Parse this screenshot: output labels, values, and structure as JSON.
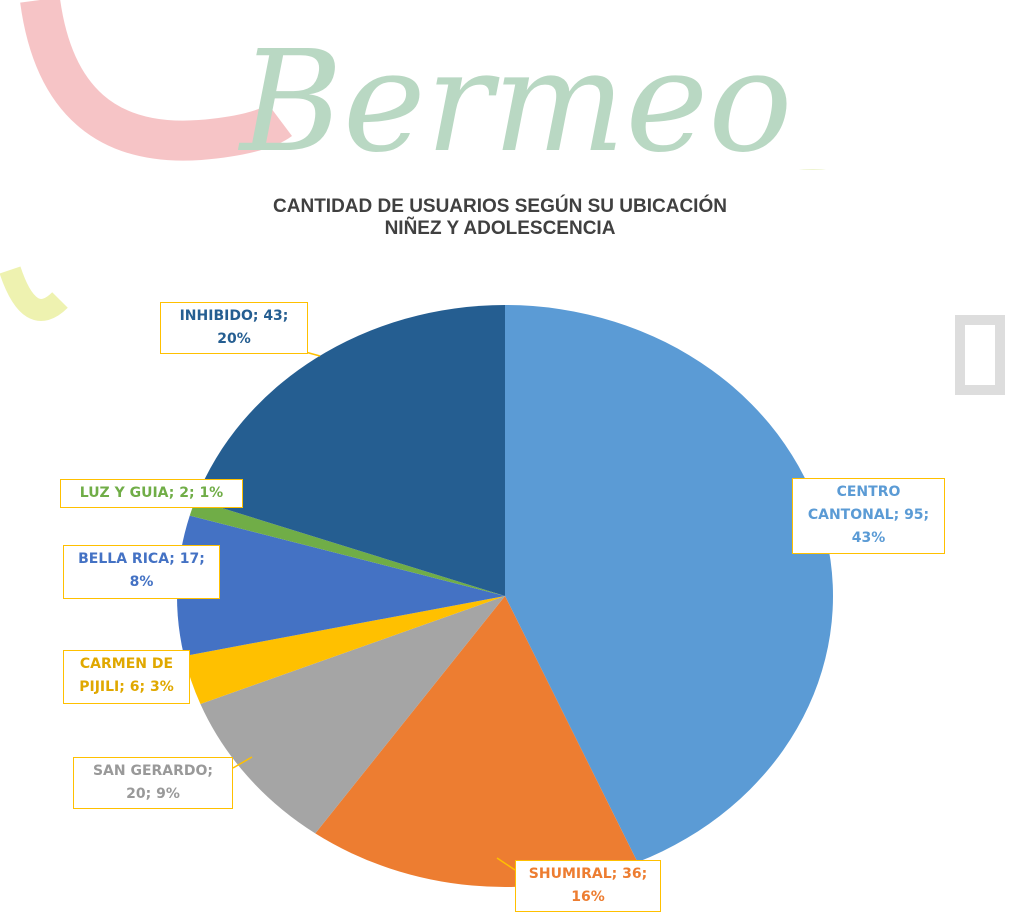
{
  "watermark": "Bermeo",
  "chart_data": {
    "type": "pie",
    "title": "CANTIDAD DE USUARIOS SEGÚN SU UBICACIÓN\nNIÑEZ Y ADOLESCENCIA",
    "categories": [
      "CENTRO CANTONAL",
      "SHUMIRAL",
      "SAN GERARDO",
      "CARMEN DE PIJILI",
      "BELLA RICA",
      "LUZ Y GUIA",
      "INHIBIDO"
    ],
    "values": [
      95,
      36,
      20,
      6,
      17,
      2,
      43
    ],
    "value_labels": [
      "CENTRO CANTONAL; 95; 43%",
      "SHUMIRAL; 36; 16%",
      "SAN GERARDO; 20; 9%",
      "CARMEN DE PIJILI; 6; 3%",
      "BELLA RICA; 17; 8%",
      "LUZ Y GUIA; 2; 1%",
      "INHIBIDO; 43; 20%"
    ],
    "colors": [
      "#5b9bd5",
      "#ed7d31",
      "#a5a5a5",
      "#ffc000",
      "#4472c4",
      "#70ad47",
      "#255e91"
    ],
    "label_border": "#ffc000"
  }
}
